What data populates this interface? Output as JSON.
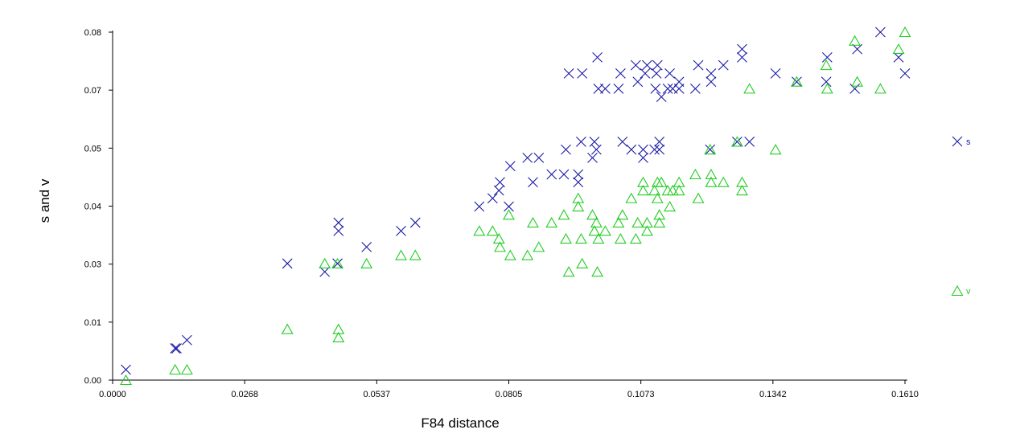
{
  "colors": {
    "s": "#1a1aa6",
    "v": "#22cc22",
    "axis": "#000000"
  },
  "chart_data": {
    "type": "scatter",
    "title": "",
    "xlabel": "F84 distance",
    "ylabel": "s and v",
    "xlim": [
      0.0,
      0.161
    ],
    "ylim": [
      0.0,
      0.08
    ],
    "x_ticks": [
      "0.0000",
      "0.0268",
      "0.0537",
      "0.0805",
      "0.1073",
      "0.1342",
      "0.1610"
    ],
    "y_ticks": [
      "0.00",
      "0.01",
      "0.03",
      "0.04",
      "0.05",
      "0.07",
      "0.08"
    ],
    "grid": false,
    "legend_position": "right",
    "series": [
      {
        "name": "s",
        "marker": "x",
        "color": "#1a1aa6",
        "points": [
          [
            0.0027,
            0.0024
          ],
          [
            0.0127,
            0.0073
          ],
          [
            0.013,
            0.0073
          ],
          [
            0.0151,
            0.0092
          ],
          [
            0.0355,
            0.0268
          ],
          [
            0.0431,
            0.0249
          ],
          [
            0.0457,
            0.0268
          ],
          [
            0.0459,
            0.0343
          ],
          [
            0.0459,
            0.0362
          ],
          [
            0.0516,
            0.0306
          ],
          [
            0.0586,
            0.0343
          ],
          [
            0.0615,
            0.0362
          ],
          [
            0.0745,
            0.0399
          ],
          [
            0.0772,
            0.0418
          ],
          [
            0.0785,
            0.0436
          ],
          [
            0.0787,
            0.0455
          ],
          [
            0.0805,
            0.0399
          ],
          [
            0.0808,
            0.0492
          ],
          [
            0.0843,
            0.0511
          ],
          [
            0.0854,
            0.0455
          ],
          [
            0.0866,
            0.0511
          ],
          [
            0.0892,
            0.0473
          ],
          [
            0.0917,
            0.0473
          ],
          [
            0.0921,
            0.053
          ],
          [
            0.0927,
            0.0705
          ],
          [
            0.0946,
            0.0455
          ],
          [
            0.0946,
            0.0473
          ],
          [
            0.0952,
            0.0548
          ],
          [
            0.0954,
            0.0705
          ],
          [
            0.0975,
            0.0511
          ],
          [
            0.0979,
            0.0548
          ],
          [
            0.0983,
            0.053
          ],
          [
            0.0985,
            0.0742
          ],
          [
            0.0987,
            0.067
          ],
          [
            0.1001,
            0.067
          ],
          [
            0.1028,
            0.067
          ],
          [
            0.1032,
            0.0705
          ],
          [
            0.1036,
            0.0548
          ],
          [
            0.1054,
            0.053
          ],
          [
            0.1063,
            0.0724
          ],
          [
            0.1067,
            0.0686
          ],
          [
            0.1078,
            0.053
          ],
          [
            0.1078,
            0.0511
          ],
          [
            0.1082,
            0.0705
          ],
          [
            0.1086,
            0.0724
          ],
          [
            0.1101,
            0.053
          ],
          [
            0.1103,
            0.067
          ],
          [
            0.1105,
            0.0705
          ],
          [
            0.1107,
            0.0724
          ],
          [
            0.1111,
            0.053
          ],
          [
            0.1111,
            0.0548
          ],
          [
            0.1115,
            0.0651
          ],
          [
            0.1128,
            0.067
          ],
          [
            0.1132,
            0.0705
          ],
          [
            0.1138,
            0.067
          ],
          [
            0.1151,
            0.067
          ],
          [
            0.1151,
            0.0686
          ],
          [
            0.1184,
            0.067
          ],
          [
            0.119,
            0.0724
          ],
          [
            0.1214,
            0.053
          ],
          [
            0.1216,
            0.0705
          ],
          [
            0.1216,
            0.0686
          ],
          [
            0.1241,
            0.0724
          ],
          [
            0.1269,
            0.0548
          ],
          [
            0.1279,
            0.0742
          ],
          [
            0.1279,
            0.0761
          ],
          [
            0.1294,
            0.0548
          ],
          [
            0.1347,
            0.0705
          ],
          [
            0.139,
            0.0686
          ],
          [
            0.145,
            0.0686
          ],
          [
            0.1452,
            0.0742
          ],
          [
            0.1508,
            0.067
          ],
          [
            0.1513,
            0.0761
          ],
          [
            0.156,
            0.08
          ],
          [
            0.1597,
            0.0742
          ],
          [
            0.161,
            0.0705
          ]
        ]
      },
      {
        "name": "v",
        "marker": "triangle",
        "color": "#22cc22",
        "points": [
          [
            0.0027,
            0.0
          ],
          [
            0.0127,
            0.0024
          ],
          [
            0.0151,
            0.0024
          ],
          [
            0.0355,
            0.0117
          ],
          [
            0.0431,
            0.0268
          ],
          [
            0.0457,
            0.0268
          ],
          [
            0.0459,
            0.0117
          ],
          [
            0.0459,
            0.0098
          ],
          [
            0.0516,
            0.0268
          ],
          [
            0.0586,
            0.0287
          ],
          [
            0.0615,
            0.0287
          ],
          [
            0.0745,
            0.0343
          ],
          [
            0.0772,
            0.0343
          ],
          [
            0.0785,
            0.0325
          ],
          [
            0.0787,
            0.0306
          ],
          [
            0.0805,
            0.038
          ],
          [
            0.0808,
            0.0287
          ],
          [
            0.0843,
            0.0287
          ],
          [
            0.0854,
            0.0362
          ],
          [
            0.0866,
            0.0306
          ],
          [
            0.0892,
            0.0362
          ],
          [
            0.0917,
            0.038
          ],
          [
            0.0921,
            0.0325
          ],
          [
            0.0927,
            0.0249
          ],
          [
            0.0946,
            0.0418
          ],
          [
            0.0946,
            0.0399
          ],
          [
            0.0952,
            0.0325
          ],
          [
            0.0954,
            0.0268
          ],
          [
            0.0975,
            0.038
          ],
          [
            0.0979,
            0.0343
          ],
          [
            0.0983,
            0.0362
          ],
          [
            0.0985,
            0.0249
          ],
          [
            0.0987,
            0.0325
          ],
          [
            0.1001,
            0.0343
          ],
          [
            0.1028,
            0.0362
          ],
          [
            0.1032,
            0.0325
          ],
          [
            0.1036,
            0.038
          ],
          [
            0.1054,
            0.0418
          ],
          [
            0.1063,
            0.0325
          ],
          [
            0.1067,
            0.0362
          ],
          [
            0.1078,
            0.0455
          ],
          [
            0.1078,
            0.0436
          ],
          [
            0.1086,
            0.0362
          ],
          [
            0.1086,
            0.0343
          ],
          [
            0.1101,
            0.0436
          ],
          [
            0.1107,
            0.0455
          ],
          [
            0.1107,
            0.0418
          ],
          [
            0.1111,
            0.038
          ],
          [
            0.1111,
            0.0362
          ],
          [
            0.1115,
            0.0455
          ],
          [
            0.1128,
            0.0436
          ],
          [
            0.1132,
            0.0399
          ],
          [
            0.1138,
            0.0436
          ],
          [
            0.1151,
            0.0455
          ],
          [
            0.1151,
            0.0436
          ],
          [
            0.1184,
            0.0473
          ],
          [
            0.119,
            0.0418
          ],
          [
            0.1214,
            0.053
          ],
          [
            0.1216,
            0.0455
          ],
          [
            0.1216,
            0.0473
          ],
          [
            0.1241,
            0.0455
          ],
          [
            0.1269,
            0.0548
          ],
          [
            0.1279,
            0.0455
          ],
          [
            0.1279,
            0.0436
          ],
          [
            0.1294,
            0.067
          ],
          [
            0.1347,
            0.053
          ],
          [
            0.139,
            0.0686
          ],
          [
            0.145,
            0.0724
          ],
          [
            0.1452,
            0.067
          ],
          [
            0.1508,
            0.078
          ],
          [
            0.1513,
            0.0686
          ],
          [
            0.156,
            0.067
          ],
          [
            0.1597,
            0.0761
          ],
          [
            0.161,
            0.08
          ]
        ]
      }
    ]
  }
}
